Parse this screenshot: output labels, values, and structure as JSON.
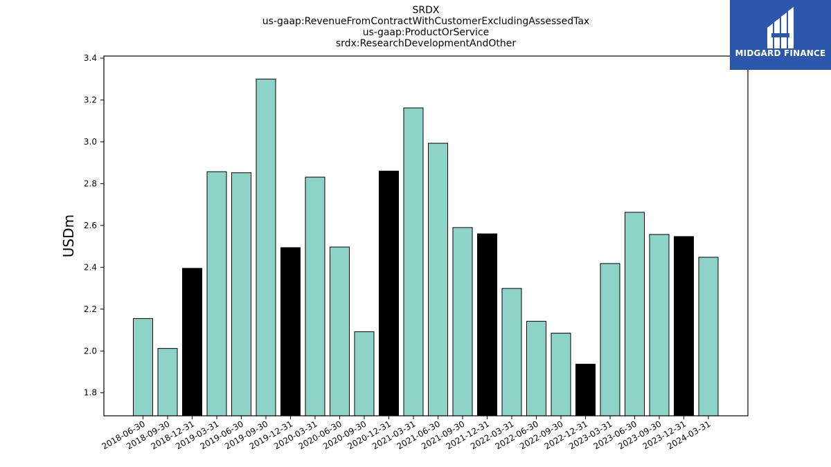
{
  "brand": {
    "name": "MIDGARD FINANCE",
    "bg_color": "#2b57ad"
  },
  "chart_data": {
    "type": "bar",
    "title_lines": [
      "SRDX",
      "us-gaap:RevenueFromContractWithCustomerExcludingAssessedTax",
      "us-gaap:ProductOrService",
      "srdx:ResearchDevelopmentAndOther"
    ],
    "xlabel": "",
    "ylabel": "USDm",
    "ylim": [
      1.69,
      3.41
    ],
    "yticks": [
      1.8,
      2.0,
      2.2,
      2.4,
      2.6,
      2.8,
      3.0,
      3.2,
      3.4
    ],
    "grid": false,
    "colors": {
      "quarter": "#8dd3c7",
      "year_end": "#000000"
    },
    "categories": [
      "2018-06-30",
      "2018-09-30",
      "2018-12-31",
      "2019-03-31",
      "2019-06-30",
      "2019-09-30",
      "2019-12-31",
      "2020-03-31",
      "2020-06-30",
      "2020-09-30",
      "2020-12-31",
      "2021-03-31",
      "2021-06-30",
      "2021-09-30",
      "2021-12-31",
      "2022-03-31",
      "2022-06-30",
      "2022-09-30",
      "2022-12-31",
      "2023-03-31",
      "2023-06-30",
      "2023-09-30",
      "2023-12-31",
      "2024-03-31"
    ],
    "values": [
      2.155,
      2.012,
      2.395,
      2.857,
      2.852,
      3.3,
      2.494,
      2.831,
      2.497,
      2.092,
      2.86,
      3.162,
      2.993,
      2.59,
      2.56,
      2.299,
      2.142,
      2.085,
      1.937,
      2.418,
      2.663,
      2.557,
      2.547,
      2.448
    ]
  }
}
